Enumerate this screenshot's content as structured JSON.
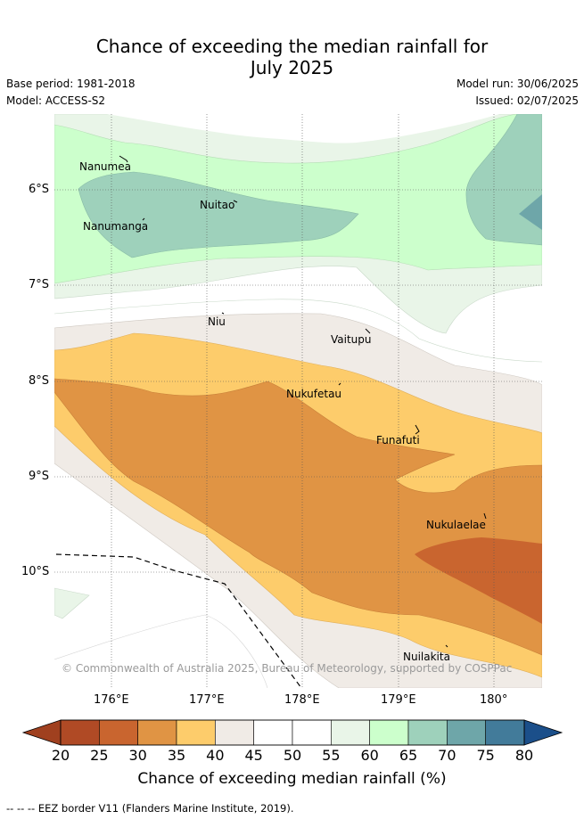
{
  "header": {
    "title_line1": "Chance of exceeding the median rainfall for",
    "title_line2": "July 2025",
    "base_period": "Base period: 1981-2018",
    "model": "Model: ACCESS-S2",
    "model_run": "Model run: 30/06/2025",
    "issued": "Issued: 02/07/2025"
  },
  "map": {
    "lat_labels": [
      "6°S",
      "7°S",
      "8°S",
      "9°S",
      "10°S"
    ],
    "lon_labels": [
      "176°E",
      "177°E",
      "178°E",
      "179°E",
      "180°"
    ],
    "places": [
      "Nanumea",
      "Nuitao",
      "Nanumanga",
      "Niu",
      "Vaitupu",
      "Nukufetau",
      "Funafuti",
      "Nukulaelae",
      "Nuilakita"
    ],
    "copyright": "© Commonwealth of Australia 2025, Bureau of Meteorology, supported by COSPPac"
  },
  "colorbar": {
    "ticks": [
      "20",
      "25",
      "30",
      "35",
      "40",
      "45",
      "50",
      "55",
      "60",
      "65",
      "70",
      "75",
      "80"
    ],
    "colors": [
      "#b04a25",
      "#c9652f",
      "#e09444",
      "#fdcc6b",
      "#f0ebe6",
      "#ffffff",
      "#ffffff",
      "#e9f5e8",
      "#ccffcc",
      "#9ed1bb",
      "#6ea6a9",
      "#427b9a",
      "#1b4f8a"
    ],
    "title": "Chance of exceeding median rainfall (%)"
  },
  "footer": {
    "eez_legend": "--  --  -- EEZ border V11 (Flanders Marine Institute, 2019)."
  }
}
